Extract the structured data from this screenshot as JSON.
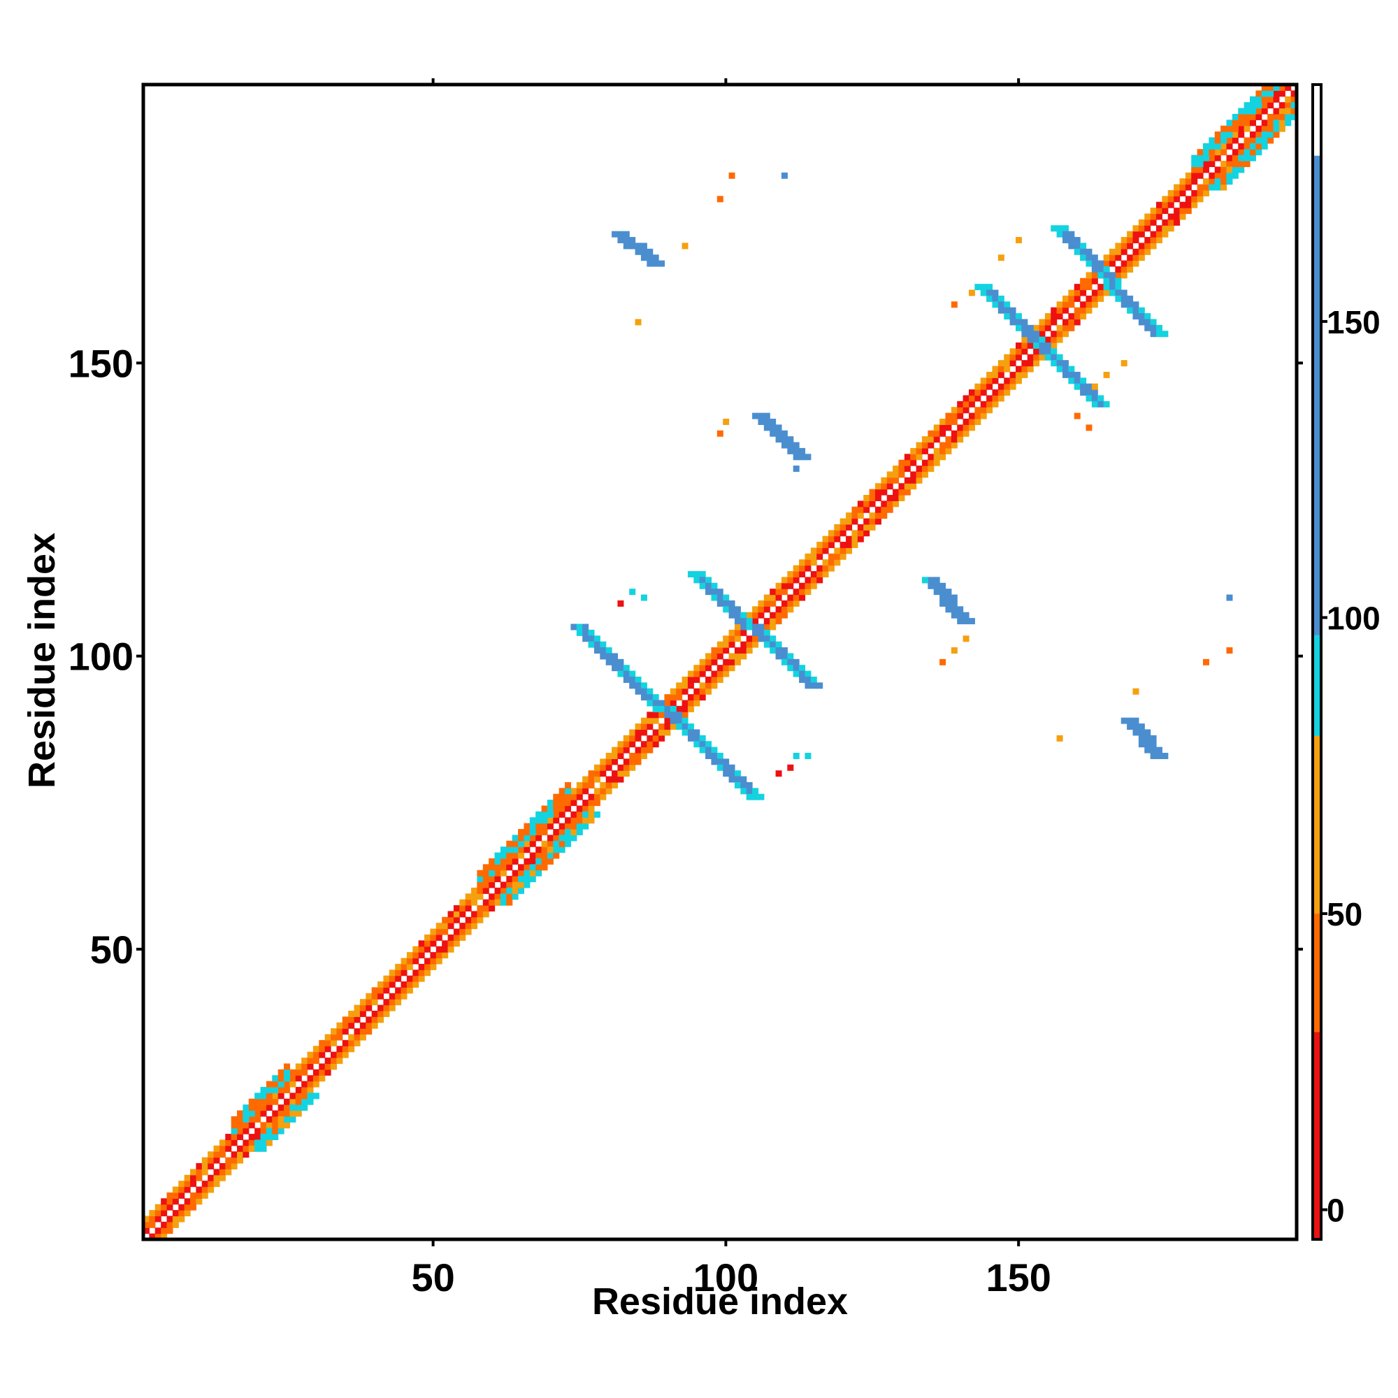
{
  "chart_data": {
    "type": "heatmap",
    "xlabel": "Residue index",
    "ylabel": "Residue index",
    "xlim": [
      1,
      197
    ],
    "ylim": [
      1,
      197
    ],
    "x_ticks": [
      50,
      100,
      150
    ],
    "y_ticks": [
      50,
      100,
      150
    ],
    "legend_position": "right",
    "colorbar": {
      "range": [
        -5,
        190
      ],
      "ticks": [
        0,
        50,
        100,
        150
      ],
      "bands": [
        {
          "from": -5,
          "to": 30,
          "color": "#ee1111"
        },
        {
          "from": 30,
          "to": 50,
          "color": "#ff6a00"
        },
        {
          "from": 50,
          "to": 80,
          "color": "#f5a00f"
        },
        {
          "from": 80,
          "to": 97,
          "color": "#13d3e0"
        },
        {
          "from": 97,
          "to": 178,
          "color": "#4a8ed0"
        },
        {
          "from": 178,
          "to": 190,
          "color": "#ffffff"
        }
      ]
    },
    "diagonal": {
      "from": 1,
      "to": 197,
      "colors_near": [
        "#ee1111",
        "#ff6a00",
        "#f5a00f"
      ],
      "colors_mid": [
        "#13d3e0",
        "#4a8ed0"
      ]
    },
    "regions": [
      {
        "name": "helix-1-band",
        "type": "band",
        "start": 16,
        "end": 25,
        "offset": 4,
        "color": "#13d3e0"
      },
      {
        "name": "helix-2-band",
        "type": "band",
        "start": 58,
        "end": 73,
        "offset": 4,
        "color": "#13d3e0"
      },
      {
        "name": "helix-3-band",
        "type": "band",
        "start": 180,
        "end": 196,
        "offset": 4,
        "color": "#13d3e0"
      },
      {
        "name": "antiparallel-1",
        "type": "antidiag",
        "start_x": 75,
        "start_y": 105,
        "end_x": 105,
        "end_y": 76,
        "color": "#4a8ed0",
        "edge_color": "#13d3e0"
      },
      {
        "name": "antiparallel-2",
        "type": "antidiag",
        "start_x": 95,
        "start_y": 114,
        "end_x": 115,
        "end_y": 95,
        "color": "#4a8ed0",
        "edge_color": "#13d3e0"
      },
      {
        "name": "antiparallel-3",
        "type": "antidiag",
        "start_x": 144,
        "start_y": 163,
        "end_x": 164,
        "end_y": 143,
        "color": "#4a8ed0",
        "edge_color": "#13d3e0"
      },
      {
        "name": "antiparallel-4",
        "type": "antidiag",
        "start_x": 157,
        "start_y": 173,
        "end_x": 174,
        "end_y": 155,
        "color": "#4a8ed0",
        "edge_color": "#13d3e0"
      },
      {
        "name": "contact-upper-1",
        "type": "parallel",
        "start_x": 82,
        "start_y": 172,
        "end_x": 88,
        "end_y": 167,
        "color": "#4a8ed0"
      },
      {
        "name": "contact-upper-2",
        "type": "parallel",
        "start_x": 106,
        "start_y": 141,
        "end_x": 113,
        "end_y": 134,
        "color": "#4a8ed0"
      },
      {
        "name": "contact-lower-1",
        "type": "parallel",
        "start_x": 135,
        "start_y": 113,
        "end_x": 141,
        "end_y": 106,
        "color": "#4a8ed0"
      },
      {
        "name": "contact-lower-2",
        "type": "parallel",
        "start_x": 169,
        "start_y": 89,
        "end_x": 174,
        "end_y": 83,
        "color": "#4a8ed0"
      }
    ],
    "scatter_points": [
      {
        "x": 101,
        "y": 182,
        "value": 40
      },
      {
        "x": 110,
        "y": 182,
        "value": 150
      },
      {
        "x": 99,
        "y": 178,
        "value": 40
      },
      {
        "x": 93,
        "y": 170,
        "value": 60
      },
      {
        "x": 85,
        "y": 157,
        "value": 60
      },
      {
        "x": 99,
        "y": 138,
        "value": 40
      },
      {
        "x": 100,
        "y": 140,
        "value": 60
      },
      {
        "x": 112,
        "y": 132,
        "value": 150
      },
      {
        "x": 82,
        "y": 109,
        "value": 10
      },
      {
        "x": 84,
        "y": 111,
        "value": 90
      },
      {
        "x": 86,
        "y": 110,
        "value": 90
      },
      {
        "x": 109,
        "y": 80,
        "value": 10
      },
      {
        "x": 111,
        "y": 81,
        "value": 10
      },
      {
        "x": 112,
        "y": 83,
        "value": 90
      },
      {
        "x": 114,
        "y": 83,
        "value": 90
      },
      {
        "x": 137,
        "y": 99,
        "value": 40
      },
      {
        "x": 139,
        "y": 101,
        "value": 60
      },
      {
        "x": 141,
        "y": 103,
        "value": 60
      },
      {
        "x": 134,
        "y": 113,
        "value": 90
      },
      {
        "x": 157,
        "y": 86,
        "value": 60
      },
      {
        "x": 170,
        "y": 94,
        "value": 60
      },
      {
        "x": 182,
        "y": 99,
        "value": 40
      },
      {
        "x": 186,
        "y": 101,
        "value": 40
      },
      {
        "x": 186,
        "y": 110,
        "value": 150
      },
      {
        "x": 139,
        "y": 160,
        "value": 40
      },
      {
        "x": 142,
        "y": 162,
        "value": 60
      },
      {
        "x": 147,
        "y": 168,
        "value": 60
      },
      {
        "x": 150,
        "y": 171,
        "value": 60
      },
      {
        "x": 163,
        "y": 146,
        "value": 60
      },
      {
        "x": 165,
        "y": 148,
        "value": 60
      },
      {
        "x": 168,
        "y": 150,
        "value": 60
      },
      {
        "x": 160,
        "y": 141,
        "value": 40
      },
      {
        "x": 162,
        "y": 139,
        "value": 40
      }
    ]
  }
}
